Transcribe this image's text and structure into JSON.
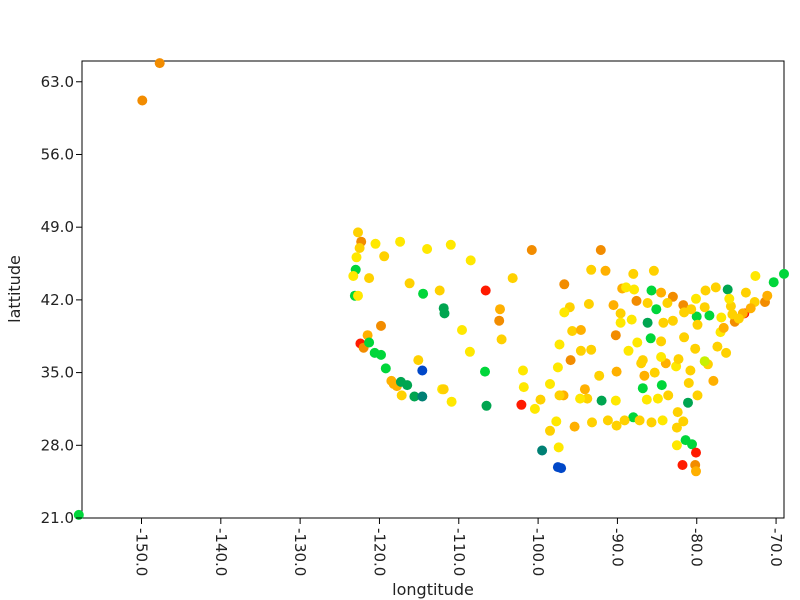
{
  "chart_data": {
    "type": "scatter",
    "title": "",
    "xlabel": "longtitude",
    "ylabel": "lattitude",
    "xlim": [
      -157.5,
      -69.0
    ],
    "ylim": [
      21.0,
      65.0
    ],
    "xticks": [
      -150,
      -140,
      -130,
      -120,
      -110,
      -100,
      -90,
      -80,
      -70
    ],
    "xtick_labels": [
      "-150.0",
      "-140.0",
      "-130.0",
      "-120.0",
      "-110.0",
      "-100.0",
      "-90.0",
      "-80.0",
      "-70.0"
    ],
    "yticks": [
      21,
      28,
      35,
      42,
      49,
      56,
      63
    ],
    "ytick_labels": [
      "21.0",
      "28.0",
      "35.0",
      "42.0",
      "49.0",
      "56.0",
      "63.0"
    ],
    "grid": false,
    "legend": "none",
    "colors": {
      "red": "#ff1a00",
      "dark_orange": "#f28c00",
      "orange": "#ffb000",
      "gold": "#ffd100",
      "yellow": "#ffe800",
      "yellow_green": "#c8f000",
      "green": "#00d63a",
      "dark_green": "#00a550",
      "teal": "#008074",
      "blue": "#0047c8"
    },
    "points": [
      {
        "x": -147.7,
        "y": 64.8,
        "color": "dark_orange"
      },
      {
        "x": -149.9,
        "y": 61.2,
        "color": "dark_orange"
      },
      {
        "x": -157.9,
        "y": 21.3,
        "color": "green"
      },
      {
        "x": -69.0,
        "y": 44.5,
        "color": "green"
      },
      {
        "x": -122.3,
        "y": 47.6,
        "color": "dark_orange"
      },
      {
        "x": -122.7,
        "y": 48.5,
        "color": "gold"
      },
      {
        "x": -122.5,
        "y": 47.0,
        "color": "gold"
      },
      {
        "x": -122.9,
        "y": 46.1,
        "color": "yellow"
      },
      {
        "x": -123.0,
        "y": 44.9,
        "color": "green"
      },
      {
        "x": -123.3,
        "y": 44.3,
        "color": "yellow"
      },
      {
        "x": -123.1,
        "y": 42.4,
        "color": "green"
      },
      {
        "x": -122.7,
        "y": 42.4,
        "color": "yellow"
      },
      {
        "x": -121.3,
        "y": 44.1,
        "color": "gold"
      },
      {
        "x": -120.5,
        "y": 47.4,
        "color": "yellow"
      },
      {
        "x": -119.4,
        "y": 46.2,
        "color": "gold"
      },
      {
        "x": -117.4,
        "y": 47.6,
        "color": "yellow"
      },
      {
        "x": -114.0,
        "y": 46.9,
        "color": "yellow"
      },
      {
        "x": -111.0,
        "y": 47.3,
        "color": "yellow"
      },
      {
        "x": -108.5,
        "y": 45.8,
        "color": "yellow"
      },
      {
        "x": -100.8,
        "y": 46.8,
        "color": "dark_orange"
      },
      {
        "x": -116.2,
        "y": 43.6,
        "color": "gold"
      },
      {
        "x": -114.5,
        "y": 42.6,
        "color": "green"
      },
      {
        "x": -112.4,
        "y": 42.9,
        "color": "gold"
      },
      {
        "x": -111.9,
        "y": 41.2,
        "color": "dark_green"
      },
      {
        "x": -111.8,
        "y": 40.7,
        "color": "dark_green"
      },
      {
        "x": -119.8,
        "y": 39.5,
        "color": "dark_orange"
      },
      {
        "x": -121.5,
        "y": 38.6,
        "color": "orange"
      },
      {
        "x": -122.4,
        "y": 37.8,
        "color": "red"
      },
      {
        "x": -122.0,
        "y": 37.4,
        "color": "dark_orange"
      },
      {
        "x": -121.3,
        "y": 37.9,
        "color": "green"
      },
      {
        "x": -120.6,
        "y": 36.9,
        "color": "green"
      },
      {
        "x": -119.8,
        "y": 36.7,
        "color": "green"
      },
      {
        "x": -119.2,
        "y": 35.4,
        "color": "green"
      },
      {
        "x": -118.5,
        "y": 34.2,
        "color": "orange"
      },
      {
        "x": -118.2,
        "y": 33.9,
        "color": "orange"
      },
      {
        "x": -117.8,
        "y": 33.7,
        "color": "orange"
      },
      {
        "x": -117.2,
        "y": 32.8,
        "color": "gold"
      },
      {
        "x": -117.3,
        "y": 34.1,
        "color": "dark_green"
      },
      {
        "x": -116.5,
        "y": 33.8,
        "color": "dark_green"
      },
      {
        "x": -115.1,
        "y": 36.2,
        "color": "gold"
      },
      {
        "x": -115.6,
        "y": 32.7,
        "color": "dark_green"
      },
      {
        "x": -114.6,
        "y": 35.2,
        "color": "blue"
      },
      {
        "x": -114.6,
        "y": 32.7,
        "color": "teal"
      },
      {
        "x": -112.1,
        "y": 33.4,
        "color": "yellow"
      },
      {
        "x": -111.9,
        "y": 33.4,
        "color": "gold"
      },
      {
        "x": -110.9,
        "y": 32.2,
        "color": "yellow"
      },
      {
        "x": -109.6,
        "y": 39.1,
        "color": "yellow"
      },
      {
        "x": -108.6,
        "y": 37.0,
        "color": "yellow"
      },
      {
        "x": -106.7,
        "y": 35.1,
        "color": "green"
      },
      {
        "x": -106.5,
        "y": 31.8,
        "color": "dark_green"
      },
      {
        "x": -106.6,
        "y": 42.9,
        "color": "red"
      },
      {
        "x": -104.9,
        "y": 40.0,
        "color": "dark_orange"
      },
      {
        "x": -104.8,
        "y": 41.1,
        "color": "orange"
      },
      {
        "x": -104.6,
        "y": 38.2,
        "color": "gold"
      },
      {
        "x": -103.2,
        "y": 44.1,
        "color": "gold"
      },
      {
        "x": -101.9,
        "y": 35.2,
        "color": "yellow"
      },
      {
        "x": -102.1,
        "y": 31.9,
        "color": "red"
      },
      {
        "x": -101.8,
        "y": 33.6,
        "color": "yellow"
      },
      {
        "x": -100.4,
        "y": 31.5,
        "color": "yellow"
      },
      {
        "x": -99.7,
        "y": 32.4,
        "color": "gold"
      },
      {
        "x": -98.5,
        "y": 29.4,
        "color": "gold"
      },
      {
        "x": -97.7,
        "y": 30.3,
        "color": "yellow"
      },
      {
        "x": -97.4,
        "y": 27.8,
        "color": "yellow"
      },
      {
        "x": -97.5,
        "y": 25.9,
        "color": "blue"
      },
      {
        "x": -97.1,
        "y": 25.8,
        "color": "blue"
      },
      {
        "x": -99.5,
        "y": 27.5,
        "color": "teal"
      },
      {
        "x": -96.8,
        "y": 32.8,
        "color": "orange"
      },
      {
        "x": -97.3,
        "y": 32.8,
        "color": "gold"
      },
      {
        "x": -95.4,
        "y": 29.8,
        "color": "orange"
      },
      {
        "x": -95.9,
        "y": 36.2,
        "color": "dark_orange"
      },
      {
        "x": -97.5,
        "y": 35.5,
        "color": "yellow"
      },
      {
        "x": -97.3,
        "y": 37.7,
        "color": "yellow"
      },
      {
        "x": -95.7,
        "y": 39.0,
        "color": "gold"
      },
      {
        "x": -94.6,
        "y": 39.1,
        "color": "orange"
      },
      {
        "x": -96.0,
        "y": 41.3,
        "color": "gold"
      },
      {
        "x": -96.7,
        "y": 40.8,
        "color": "yellow"
      },
      {
        "x": -96.7,
        "y": 43.5,
        "color": "dark_orange"
      },
      {
        "x": -93.6,
        "y": 41.6,
        "color": "gold"
      },
      {
        "x": -93.3,
        "y": 44.9,
        "color": "gold"
      },
      {
        "x": -92.1,
        "y": 46.8,
        "color": "dark_orange"
      },
      {
        "x": -91.5,
        "y": 44.8,
        "color": "orange"
      },
      {
        "x": -90.2,
        "y": 38.6,
        "color": "dark_orange"
      },
      {
        "x": -92.3,
        "y": 34.7,
        "color": "gold"
      },
      {
        "x": -90.1,
        "y": 35.1,
        "color": "orange"
      },
      {
        "x": -91.2,
        "y": 30.4,
        "color": "gold"
      },
      {
        "x": -90.1,
        "y": 29.9,
        "color": "gold"
      },
      {
        "x": -93.8,
        "y": 32.5,
        "color": "gold"
      },
      {
        "x": -92.0,
        "y": 32.3,
        "color": "dark_green"
      },
      {
        "x": -90.2,
        "y": 32.3,
        "color": "yellow"
      },
      {
        "x": -88.0,
        "y": 30.7,
        "color": "green"
      },
      {
        "x": -86.8,
        "y": 33.5,
        "color": "green"
      },
      {
        "x": -86.3,
        "y": 32.4,
        "color": "yellow"
      },
      {
        "x": -86.8,
        "y": 36.2,
        "color": "gold"
      },
      {
        "x": -85.8,
        "y": 38.3,
        "color": "green"
      },
      {
        "x": -84.5,
        "y": 38.0,
        "color": "gold"
      },
      {
        "x": -86.2,
        "y": 39.8,
        "color": "dark_green"
      },
      {
        "x": -87.6,
        "y": 41.9,
        "color": "dark_orange"
      },
      {
        "x": -87.9,
        "y": 43.0,
        "color": "yellow"
      },
      {
        "x": -88.0,
        "y": 44.5,
        "color": "gold"
      },
      {
        "x": -89.4,
        "y": 43.1,
        "color": "orange"
      },
      {
        "x": -85.7,
        "y": 42.9,
        "color": "green"
      },
      {
        "x": -85.4,
        "y": 44.8,
        "color": "gold"
      },
      {
        "x": -84.5,
        "y": 42.7,
        "color": "orange"
      },
      {
        "x": -83.0,
        "y": 42.3,
        "color": "dark_orange"
      },
      {
        "x": -83.7,
        "y": 41.7,
        "color": "gold"
      },
      {
        "x": -84.2,
        "y": 39.8,
        "color": "gold"
      },
      {
        "x": -83.0,
        "y": 40.0,
        "color": "gold"
      },
      {
        "x": -81.7,
        "y": 41.5,
        "color": "dark_orange"
      },
      {
        "x": -80.0,
        "y": 40.4,
        "color": "green"
      },
      {
        "x": -81.6,
        "y": 38.4,
        "color": "gold"
      },
      {
        "x": -84.4,
        "y": 33.8,
        "color": "green"
      },
      {
        "x": -83.9,
        "y": 35.9,
        "color": "orange"
      },
      {
        "x": -85.3,
        "y": 35.0,
        "color": "gold"
      },
      {
        "x": -82.6,
        "y": 35.6,
        "color": "yellow"
      },
      {
        "x": -81.0,
        "y": 34.0,
        "color": "gold"
      },
      {
        "x": -80.8,
        "y": 35.2,
        "color": "gold"
      },
      {
        "x": -79.9,
        "y": 32.8,
        "color": "gold"
      },
      {
        "x": -81.1,
        "y": 32.1,
        "color": "dark_green"
      },
      {
        "x": -81.7,
        "y": 30.3,
        "color": "gold"
      },
      {
        "x": -82.5,
        "y": 29.7,
        "color": "gold"
      },
      {
        "x": -81.4,
        "y": 28.5,
        "color": "green"
      },
      {
        "x": -82.5,
        "y": 28.0,
        "color": "yellow"
      },
      {
        "x": -80.6,
        "y": 28.1,
        "color": "green"
      },
      {
        "x": -80.2,
        "y": 26.1,
        "color": "dark_orange"
      },
      {
        "x": -81.8,
        "y": 26.1,
        "color": "red"
      },
      {
        "x": -80.1,
        "y": 27.3,
        "color": "red"
      },
      {
        "x": -80.1,
        "y": 25.5,
        "color": "orange"
      },
      {
        "x": -78.6,
        "y": 35.8,
        "color": "gold"
      },
      {
        "x": -77.9,
        "y": 34.2,
        "color": "orange"
      },
      {
        "x": -79.0,
        "y": 36.1,
        "color": "yellow_green"
      },
      {
        "x": -77.4,
        "y": 37.5,
        "color": "gold"
      },
      {
        "x": -76.3,
        "y": 36.9,
        "color": "gold"
      },
      {
        "x": -77.0,
        "y": 38.9,
        "color": "yellow"
      },
      {
        "x": -76.6,
        "y": 39.3,
        "color": "orange"
      },
      {
        "x": -75.2,
        "y": 39.9,
        "color": "dark_orange"
      },
      {
        "x": -74.0,
        "y": 40.7,
        "color": "red"
      },
      {
        "x": -74.2,
        "y": 40.7,
        "color": "orange"
      },
      {
        "x": -73.8,
        "y": 42.7,
        "color": "gold"
      },
      {
        "x": -72.7,
        "y": 41.8,
        "color": "gold"
      },
      {
        "x": -71.4,
        "y": 41.8,
        "color": "dark_orange"
      },
      {
        "x": -71.1,
        "y": 42.4,
        "color": "orange"
      },
      {
        "x": -70.3,
        "y": 43.7,
        "color": "green"
      },
      {
        "x": -72.6,
        "y": 44.3,
        "color": "yellow"
      },
      {
        "x": -76.1,
        "y": 43.0,
        "color": "dark_green"
      },
      {
        "x": -77.6,
        "y": 43.2,
        "color": "gold"
      },
      {
        "x": -78.9,
        "y": 42.9,
        "color": "gold"
      },
      {
        "x": -75.7,
        "y": 41.4,
        "color": "gold"
      },
      {
        "x": -76.9,
        "y": 40.3,
        "color": "yellow"
      },
      {
        "x": -78.4,
        "y": 40.5,
        "color": "green"
      },
      {
        "x": -79.0,
        "y": 41.3,
        "color": "gold"
      },
      {
        "x": -80.1,
        "y": 42.1,
        "color": "yellow"
      },
      {
        "x": -88.2,
        "y": 40.1,
        "color": "yellow"
      },
      {
        "x": -89.6,
        "y": 40.7,
        "color": "gold"
      },
      {
        "x": -89.6,
        "y": 39.8,
        "color": "yellow"
      },
      {
        "x": -87.5,
        "y": 37.9,
        "color": "yellow"
      },
      {
        "x": -88.6,
        "y": 37.1,
        "color": "yellow"
      },
      {
        "x": -85.1,
        "y": 41.1,
        "color": "green"
      },
      {
        "x": -86.2,
        "y": 41.7,
        "color": "gold"
      },
      {
        "x": -90.5,
        "y": 41.5,
        "color": "orange"
      },
      {
        "x": -94.6,
        "y": 37.1,
        "color": "gold"
      },
      {
        "x": -93.3,
        "y": 37.2,
        "color": "gold"
      },
      {
        "x": -98.5,
        "y": 33.9,
        "color": "yellow"
      },
      {
        "x": -94.1,
        "y": 33.4,
        "color": "orange"
      },
      {
        "x": -94.7,
        "y": 32.5,
        "color": "yellow"
      },
      {
        "x": -84.9,
        "y": 32.5,
        "color": "yellow"
      },
      {
        "x": -83.6,
        "y": 32.8,
        "color": "gold"
      },
      {
        "x": -82.4,
        "y": 31.2,
        "color": "gold"
      },
      {
        "x": -87.2,
        "y": 30.4,
        "color": "gold"
      },
      {
        "x": -85.7,
        "y": 30.2,
        "color": "gold"
      },
      {
        "x": -84.3,
        "y": 30.4,
        "color": "yellow"
      },
      {
        "x": -89.1,
        "y": 30.4,
        "color": "gold"
      },
      {
        "x": -93.2,
        "y": 30.2,
        "color": "gold"
      },
      {
        "x": -87.0,
        "y": 35.9,
        "color": "gold"
      },
      {
        "x": -86.6,
        "y": 34.7,
        "color": "orange"
      },
      {
        "x": -84.5,
        "y": 36.5,
        "color": "yellow"
      },
      {
        "x": -82.3,
        "y": 36.3,
        "color": "gold"
      },
      {
        "x": -80.2,
        "y": 37.3,
        "color": "gold"
      },
      {
        "x": -81.6,
        "y": 40.8,
        "color": "gold"
      },
      {
        "x": -80.7,
        "y": 41.1,
        "color": "gold"
      },
      {
        "x": -79.9,
        "y": 39.6,
        "color": "gold"
      },
      {
        "x": -75.5,
        "y": 40.6,
        "color": "gold"
      },
      {
        "x": -73.2,
        "y": 41.2,
        "color": "orange"
      },
      {
        "x": -74.7,
        "y": 40.2,
        "color": "gold"
      },
      {
        "x": -75.9,
        "y": 42.1,
        "color": "yellow"
      },
      {
        "x": -88.9,
        "y": 43.2,
        "color": "yellow"
      }
    ]
  }
}
